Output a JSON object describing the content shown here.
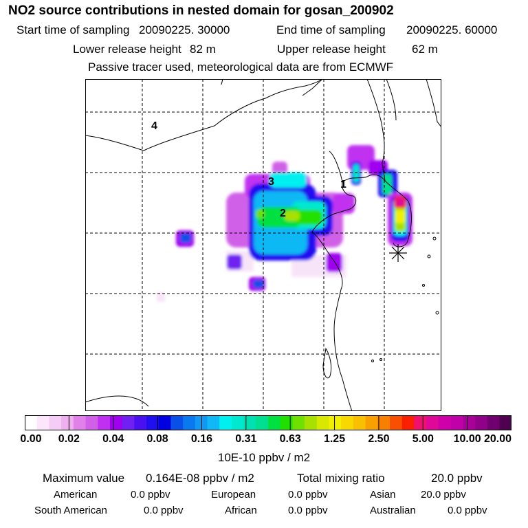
{
  "header": {
    "title": "NO2 source contributions in nested domain for gosan_200902",
    "start_label": "Start time of sampling",
    "start_value": "20090225. 30000",
    "end_label": "End time of sampling",
    "end_value": "20090225. 60000",
    "lower_label": "Lower release height",
    "lower_value": "82 m",
    "upper_label": "Upper release height",
    "upper_value": "62 m",
    "note": "Passive tracer used, meteorological data are from ECMWF"
  },
  "map": {
    "region_labels": [
      "1",
      "2",
      "3",
      "4"
    ],
    "receptor_marker": "asterisk-marker"
  },
  "colorbar": {
    "tick_labels": [
      "0.00",
      "0.02",
      "0.04",
      "0.08",
      "0.16",
      "0.31",
      "0.63",
      "1.25",
      "2.50",
      "5.00",
      "10.00",
      "20.00"
    ],
    "units": "10E-10 ppbv / m2",
    "colors": [
      "#ffffff",
      "#fbe6fb",
      "#f5ccf5",
      "#eeb0ee",
      "#e080e8",
      "#d060e8",
      "#c030f0",
      "#a000f0",
      "#7020f0",
      "#4a10f0",
      "#2010f0",
      "#0000e0",
      "#0a50e8",
      "#0a78ee",
      "#1098f2",
      "#10b8f5",
      "#00f0f0",
      "#00e8d0",
      "#00e0b0",
      "#00e090",
      "#00e040",
      "#20e000",
      "#70e000",
      "#a8e000",
      "#d8e800",
      "#f0f000",
      "#f8d800",
      "#f8c000",
      "#f8a000",
      "#f88000",
      "#f85000",
      "#f82000",
      "#f01070",
      "#e00898",
      "#d000a8",
      "#c000a8",
      "#a80098",
      "#900088",
      "#700070",
      "#500050"
    ]
  },
  "summary": {
    "max_label": "Maximum value",
    "max_value": "0.164E-08 ppbv / m2",
    "total_label": "Total mixing ratio",
    "total_value": "20.0 ppbv",
    "sources": [
      {
        "name": "American",
        "value": "0.0 ppbv"
      },
      {
        "name": "European",
        "value": "0.0 ppbv"
      },
      {
        "name": "Asian",
        "value": "20.0 ppbv"
      },
      {
        "name": "South American",
        "value": "0.0 ppbv"
      },
      {
        "name": "African",
        "value": "0.0 ppbv"
      },
      {
        "name": "Australian",
        "value": "0.0 ppbv"
      }
    ]
  }
}
